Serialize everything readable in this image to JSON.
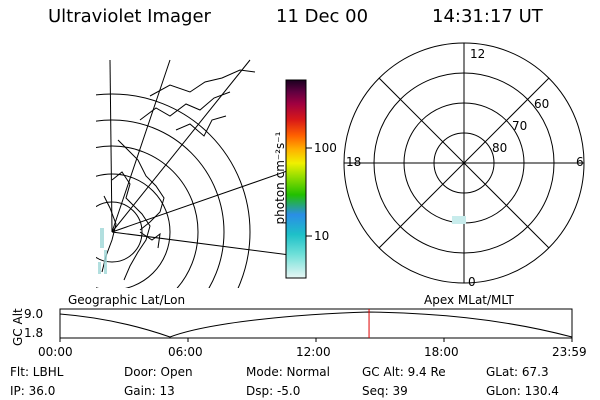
{
  "header": {
    "title": "Ultraviolet Imager",
    "date": "11 Dec 00",
    "time": "14:31:17 UT"
  },
  "colorbar": {
    "unit_label": "photon cm⁻²s⁻¹",
    "tick_100": "100",
    "tick_10": "10",
    "stops": [
      "#e8f6f4",
      "#39c9c9",
      "#1ea0e6",
      "#2a6ae0",
      "#8fd000",
      "#22c000",
      "#f0f000",
      "#ffb000",
      "#ff7000",
      "#e02020",
      "#b00040",
      "#900050",
      "#5a003c",
      "#200028"
    ]
  },
  "left_panel": {
    "label": "Geographic Lat/Lon"
  },
  "right_panel": {
    "label": "Apex MLat/MLT",
    "mlt_12": "12",
    "mlt_18": "18",
    "mlt_6": "6",
    "mlt_0": "0",
    "lat_60": "60",
    "lat_70": "70",
    "lat_80": "80"
  },
  "altitude_plot": {
    "ylabel": "GC Alt",
    "ytick_top": "9.0",
    "ytick_bottom": "1.8",
    "xticks": [
      "00:00",
      "06:00",
      "12:00",
      "18:00",
      "23:59"
    ],
    "current_time_fraction": 0.6036,
    "marker_color": "#e00000"
  },
  "footer": {
    "row1": {
      "flt": "Flt: LBHL",
      "door": "Door: Open",
      "mode": "Mode: Normal",
      "gcalt": "GC Alt: 9.4 Re",
      "glat": "GLat:  67.3"
    },
    "row2": {
      "ip": "IP: 36.0",
      "gain": "Gain: 13",
      "dsp": "Dsp:   -5.0",
      "seq": "Seq: 39",
      "glon": "GLon: 130.4"
    }
  }
}
